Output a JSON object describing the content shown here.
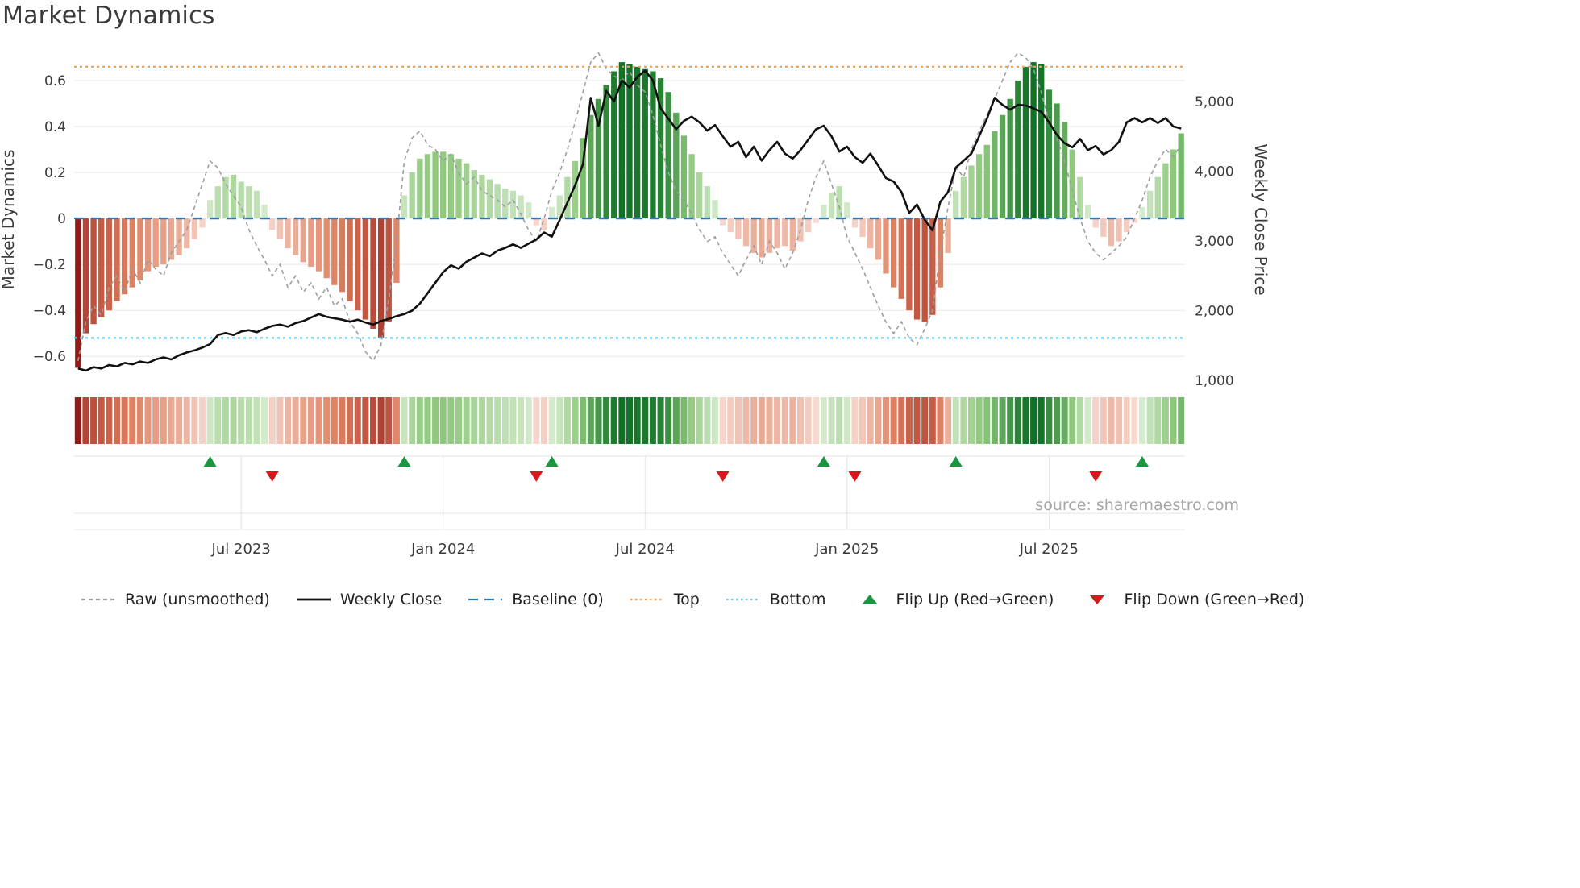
{
  "title": "Market Dynamics",
  "source": "source: sharemaestro.com",
  "axes": {
    "left_label": "Market Dynamics",
    "right_label": "Weekly Close Price",
    "left_range": [
      -0.75,
      0.74
    ],
    "right_range": [
      850,
      5760
    ],
    "left_ticks": [
      {
        "v": 0.6,
        "label": "0.6"
      },
      {
        "v": 0.4,
        "label": "0.4"
      },
      {
        "v": 0.2,
        "label": "0.2"
      },
      {
        "v": 0.0,
        "label": "0"
      },
      {
        "v": -0.2,
        "label": "−0.2"
      },
      {
        "v": -0.4,
        "label": "−0.4"
      },
      {
        "v": -0.6,
        "label": "−0.6"
      }
    ],
    "right_ticks": [
      {
        "v": 5000,
        "label": "5,000"
      },
      {
        "v": 4000,
        "label": "4,000"
      },
      {
        "v": 3000,
        "label": "3,000"
      },
      {
        "v": 2000,
        "label": "2,000"
      },
      {
        "v": 1000,
        "label": "1,000"
      }
    ],
    "x_ticks": [
      {
        "week": 21,
        "label": "Jul 2023"
      },
      {
        "week": 47,
        "label": "Jan 2024"
      },
      {
        "week": 73,
        "label": "Jul 2024"
      },
      {
        "week": 99,
        "label": "Jan 2025"
      },
      {
        "week": 125,
        "label": "Jul 2025"
      }
    ]
  },
  "colors": {
    "raw": "#9e9e9e",
    "close": "#111111",
    "baseline": "#2b7bba",
    "top": "#f0a150",
    "bottom": "#63cbe8",
    "flip_up": "#1a9641",
    "flip_down": "#d7191c",
    "grid": "#ebebeb",
    "panel_grid": "#e3e3e3",
    "tick_text": "#3c3c3c",
    "source_text": "#a6a6a6"
  },
  "bar_gradient": {
    "positive": [
      "#e4f2de",
      "#8bc779",
      "#117226"
    ],
    "negative": [
      "#f9dfd8",
      "#dd7f5e",
      "#8d1111"
    ],
    "max_abs": 0.68
  },
  "legend": [
    {
      "label": "Raw (unsmoothed)",
      "type": "dashed",
      "dash": "5 4",
      "color": "#9e9e9e",
      "icon": "raw-line-icon"
    },
    {
      "label": "Weekly Close",
      "type": "line",
      "color": "#111111",
      "icon": "weekly-close-line-icon"
    },
    {
      "label": "Baseline (0)",
      "type": "dashed",
      "dash": "12 8",
      "color": "#2b7bba",
      "icon": "baseline-line-icon"
    },
    {
      "label": "Top",
      "type": "dashed",
      "dash": "2.5 3.5",
      "color": "#f0a150",
      "icon": "top-line-icon"
    },
    {
      "label": "Bottom",
      "type": "dashed",
      "dash": "2.5 3.5",
      "color": "#63cbe8",
      "icon": "bottom-line-icon"
    },
    {
      "label": "Flip Up (Red→Green)",
      "type": "triangle-up",
      "color": "#1a9641",
      "icon": "flip-up-triangle-icon"
    },
    {
      "label": "Flip Down (Green→Red)",
      "type": "triangle-down",
      "color": "#d7191c",
      "icon": "flip-down-triangle-icon"
    }
  ],
  "chart_data": {
    "type": "bar",
    "x_unit": "week index (weekly data, ~Feb 2023 – Oct 2025)",
    "baseline": 0,
    "top_threshold": 0.66,
    "bottom_threshold": -0.52,
    "bars_oscillator": [
      -0.65,
      -0.5,
      -0.46,
      -0.43,
      -0.4,
      -0.36,
      -0.33,
      -0.3,
      -0.27,
      -0.23,
      -0.21,
      -0.2,
      -0.18,
      -0.16,
      -0.13,
      -0.09,
      -0.04,
      0.08,
      0.14,
      0.18,
      0.19,
      0.16,
      0.14,
      0.12,
      0.06,
      -0.05,
      -0.09,
      -0.13,
      -0.16,
      -0.19,
      -0.21,
      -0.23,
      -0.26,
      -0.29,
      -0.32,
      -0.36,
      -0.4,
      -0.44,
      -0.48,
      -0.52,
      -0.45,
      -0.28,
      0.1,
      0.2,
      0.26,
      0.28,
      0.29,
      0.29,
      0.28,
      0.26,
      0.24,
      0.21,
      0.19,
      0.17,
      0.15,
      0.13,
      0.12,
      0.1,
      0.07,
      -0.03,
      -0.05,
      0.05,
      0.1,
      0.18,
      0.25,
      0.35,
      0.45,
      0.52,
      0.58,
      0.64,
      0.68,
      0.67,
      0.66,
      0.65,
      0.64,
      0.61,
      0.55,
      0.46,
      0.36,
      0.28,
      0.2,
      0.14,
      0.08,
      -0.03,
      -0.06,
      -0.09,
      -0.12,
      -0.15,
      -0.17,
      -0.15,
      -0.13,
      -0.12,
      -0.14,
      -0.1,
      -0.06,
      -0.02,
      0.06,
      0.11,
      0.14,
      0.07,
      -0.04,
      -0.08,
      -0.13,
      -0.18,
      -0.24,
      -0.3,
      -0.35,
      -0.4,
      -0.44,
      -0.45,
      -0.42,
      -0.3,
      -0.15,
      0.12,
      0.18,
      0.23,
      0.28,
      0.32,
      0.38,
      0.45,
      0.52,
      0.6,
      0.66,
      0.68,
      0.67,
      0.56,
      0.5,
      0.42,
      0.3,
      0.18,
      0.06,
      -0.04,
      -0.08,
      -0.12,
      -0.1,
      -0.06,
      -0.02,
      0.05,
      0.12,
      0.18,
      0.24,
      0.3,
      0.37
    ],
    "raw_unsmoothed": [
      -0.62,
      -0.45,
      -0.38,
      -0.42,
      -0.3,
      -0.25,
      -0.32,
      -0.22,
      -0.28,
      -0.18,
      -0.22,
      -0.25,
      -0.15,
      -0.1,
      -0.05,
      0.05,
      0.15,
      0.25,
      0.22,
      0.15,
      0.1,
      0.05,
      -0.05,
      -0.12,
      -0.18,
      -0.25,
      -0.2,
      -0.3,
      -0.25,
      -0.32,
      -0.28,
      -0.35,
      -0.3,
      -0.38,
      -0.35,
      -0.45,
      -0.5,
      -0.58,
      -0.62,
      -0.55,
      -0.35,
      -0.1,
      0.25,
      0.35,
      0.38,
      0.32,
      0.3,
      0.25,
      0.28,
      0.2,
      0.15,
      0.18,
      0.12,
      0.1,
      0.08,
      0.05,
      0.08,
      0.02,
      -0.05,
      -0.1,
      0,
      0.12,
      0.2,
      0.3,
      0.42,
      0.55,
      0.68,
      0.72,
      0.65,
      0.62,
      0.6,
      0.64,
      0.58,
      0.55,
      0.45,
      0.32,
      0.2,
      0.12,
      0.08,
      0.02,
      -0.05,
      -0.1,
      -0.08,
      -0.15,
      -0.2,
      -0.25,
      -0.18,
      -0.12,
      -0.2,
      -0.1,
      -0.15,
      -0.22,
      -0.15,
      -0.05,
      0.08,
      0.18,
      0.25,
      0.15,
      0.05,
      -0.08,
      -0.15,
      -0.22,
      -0.3,
      -0.38,
      -0.45,
      -0.5,
      -0.45,
      -0.52,
      -0.55,
      -0.48,
      -0.4,
      -0.15,
      0.05,
      0.22,
      0.18,
      0.3,
      0.38,
      0.45,
      0.52,
      0.6,
      0.68,
      0.72,
      0.7,
      0.65,
      0.55,
      0.42,
      0.35,
      0.25,
      0.12,
      0,
      -0.1,
      -0.15,
      -0.18,
      -0.15,
      -0.12,
      -0.08,
      0,
      0.08,
      0.18,
      0.25,
      0.3,
      0.27,
      0.32
    ],
    "weekly_close": [
      1170,
      1140,
      1190,
      1170,
      1220,
      1200,
      1250,
      1230,
      1270,
      1250,
      1300,
      1330,
      1300,
      1360,
      1400,
      1430,
      1470,
      1520,
      1650,
      1680,
      1650,
      1700,
      1720,
      1690,
      1740,
      1780,
      1800,
      1770,
      1820,
      1850,
      1900,
      1950,
      1910,
      1890,
      1870,
      1840,
      1870,
      1830,
      1800,
      1850,
      1880,
      1920,
      1950,
      2000,
      2100,
      2250,
      2400,
      2550,
      2650,
      2600,
      2700,
      2760,
      2820,
      2780,
      2860,
      2900,
      2950,
      2900,
      2960,
      3020,
      3120,
      3060,
      3300,
      3550,
      3800,
      4100,
      5050,
      4650,
      5150,
      5000,
      5300,
      5200,
      5350,
      5440,
      5300,
      4900,
      4750,
      4600,
      4720,
      4780,
      4700,
      4580,
      4660,
      4500,
      4350,
      4420,
      4200,
      4350,
      4150,
      4300,
      4420,
      4250,
      4180,
      4300,
      4450,
      4600,
      4650,
      4500,
      4280,
      4350,
      4200,
      4120,
      4250,
      4080,
      3900,
      3850,
      3700,
      3400,
      3520,
      3300,
      3150,
      3560,
      3700,
      4050,
      4150,
      4250,
      4500,
      4750,
      5050,
      4950,
      4880,
      4950,
      4940,
      4900,
      4850,
      4700,
      4520,
      4400,
      4340,
      4460,
      4300,
      4360,
      4240,
      4300,
      4420,
      4700,
      4760,
      4700,
      4760,
      4690,
      4760,
      4640,
      4610
    ],
    "flip_up_weeks": [
      17,
      42,
      61,
      96,
      113,
      137
    ],
    "flip_down_weeks": [
      25,
      59,
      83,
      100,
      131
    ]
  }
}
